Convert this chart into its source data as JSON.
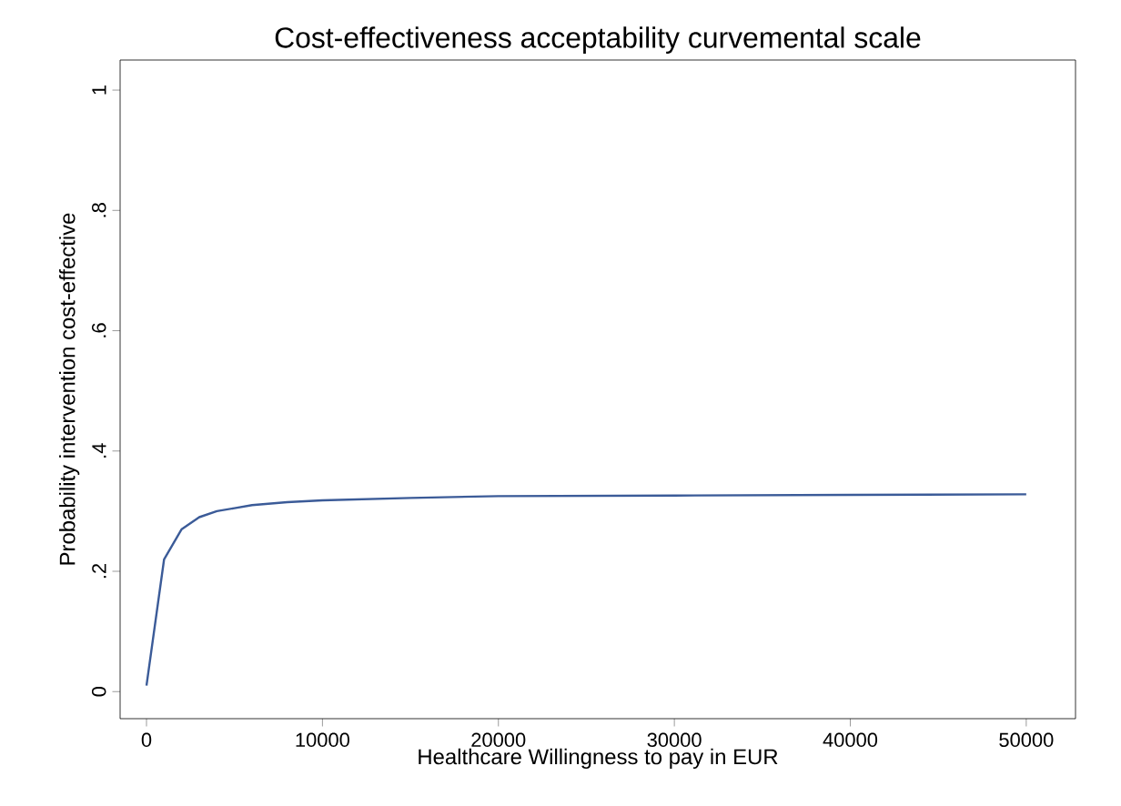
{
  "chart_data": {
    "type": "line",
    "title": "Cost-effectiveness acceptability curvemental scale",
    "xlabel": "Healthcare Willingness to pay in EUR",
    "ylabel": "Probability intervention cost-effective",
    "x": [
      0,
      1000,
      2000,
      3000,
      4000,
      5000,
      6000,
      8000,
      10000,
      15000,
      20000,
      30000,
      40000,
      50000
    ],
    "series": [
      {
        "color": "#3b5b98",
        "values": [
          0.01,
          0.22,
          0.27,
          0.29,
          0.3,
          0.305,
          0.31,
          0.315,
          0.318,
          0.322,
          0.325,
          0.326,
          0.327,
          0.328
        ]
      }
    ],
    "xlim": [
      -1500,
      52800
    ],
    "ylim": [
      -0.045,
      1.05
    ],
    "xticks": [
      0,
      10000,
      20000,
      30000,
      40000,
      50000
    ],
    "yticks": [
      {
        "value": 0,
        "label": "0"
      },
      {
        "value": 0.2,
        "label": ".2"
      },
      {
        "value": 0.4,
        "label": ".4"
      },
      {
        "value": 0.6,
        "label": ".6"
      },
      {
        "value": 0.8,
        "label": ".8"
      },
      {
        "value": 1,
        "label": "1"
      }
    ],
    "marker": "none",
    "line_style": "solid"
  }
}
